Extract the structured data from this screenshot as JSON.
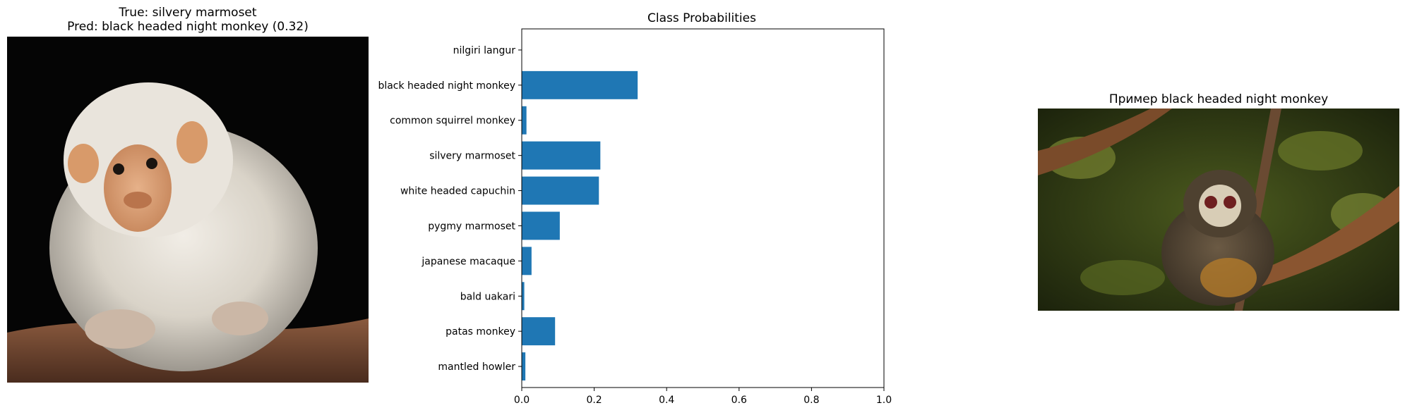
{
  "left_panel": {
    "true_label": "True: silvery marmoset",
    "pred_label": "Pred: black headed night monkey (0.32)"
  },
  "right_panel": {
    "title": "Пример black headed night monkey"
  },
  "colors": {
    "bar": "#1f77b4"
  },
  "chart_data": {
    "type": "bar",
    "orientation": "horizontal",
    "title": "Class Probabilities",
    "xlabel": "",
    "ylabel": "",
    "xlim": [
      0,
      1.0
    ],
    "xticks": [
      "0.0",
      "0.2",
      "0.4",
      "0.6",
      "0.8",
      "1.0"
    ],
    "grid": false,
    "categories": [
      "nilgiri langur",
      "black headed night monkey",
      "common squirrel monkey",
      "silvery marmoset",
      "white headed capuchin",
      "pygmy marmoset",
      "japanese macaque",
      "bald uakari",
      "patas monkey",
      "mantled howler"
    ],
    "values": [
      0.0,
      0.32,
      0.013,
      0.217,
      0.213,
      0.105,
      0.027,
      0.007,
      0.092,
      0.01
    ]
  }
}
